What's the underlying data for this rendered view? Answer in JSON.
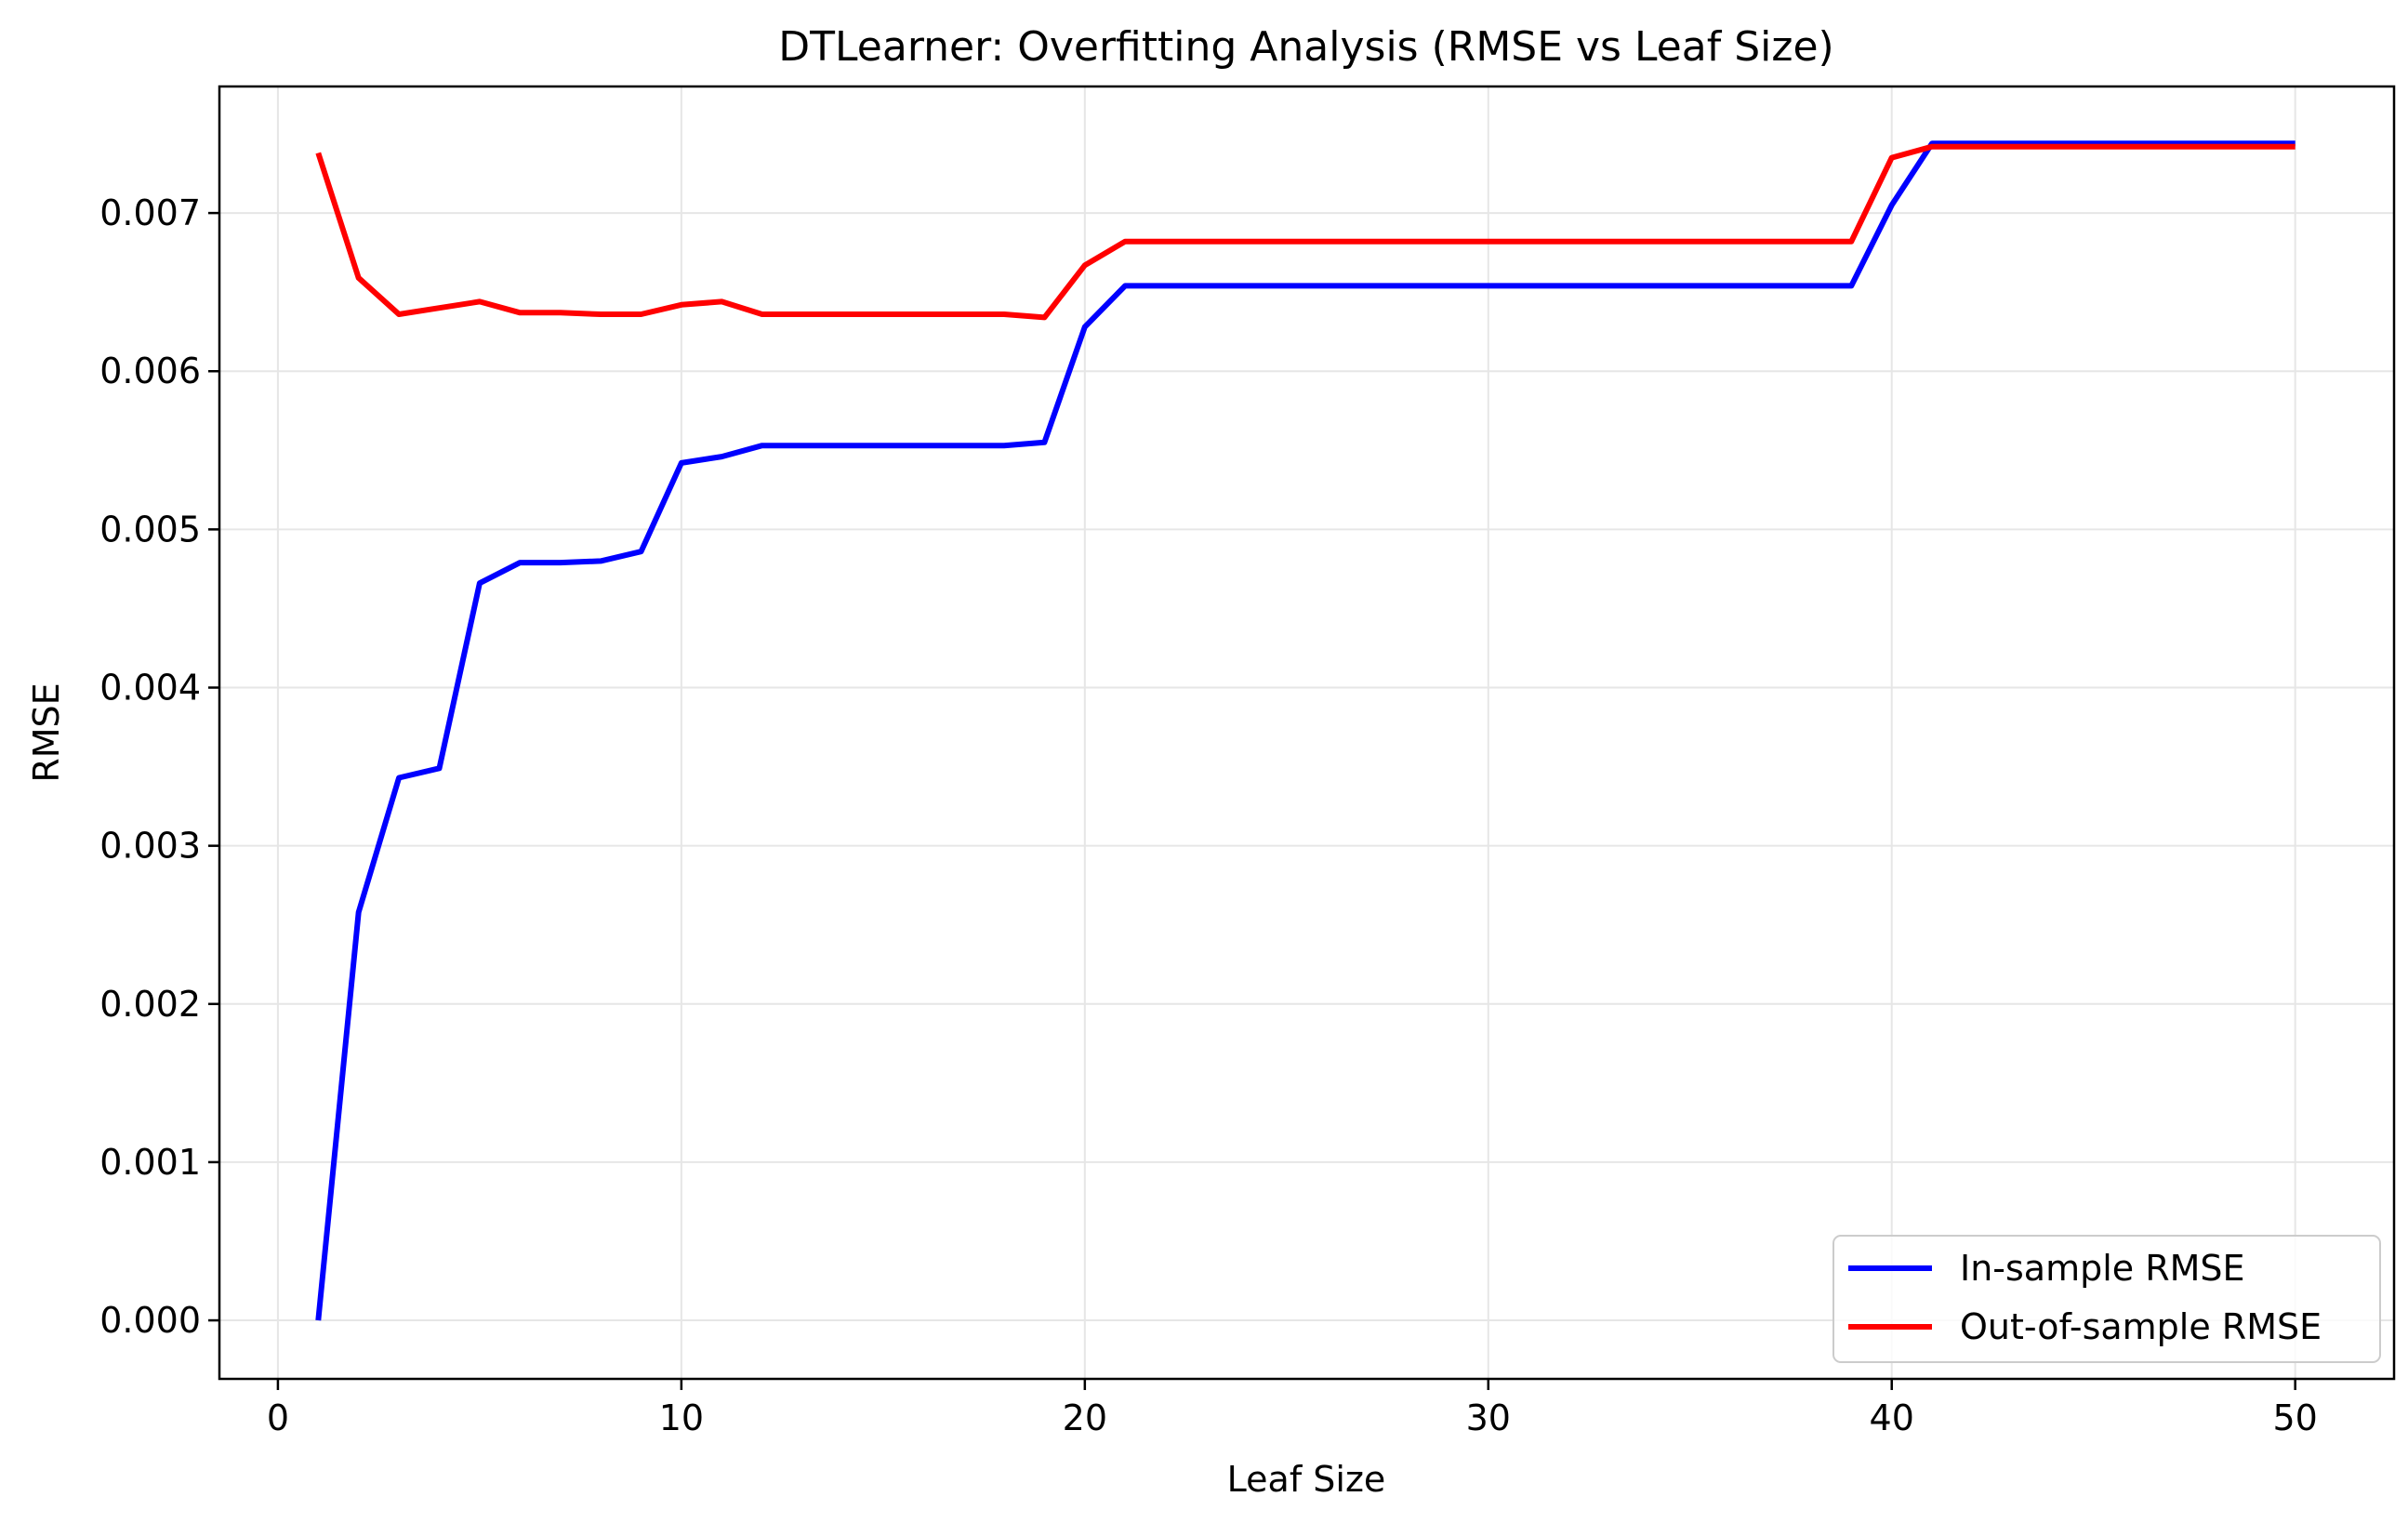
{
  "chart_data": {
    "type": "line",
    "title": "DTLearner: Overfitting Analysis (RMSE vs Leaf Size)",
    "xlabel": "Leaf Size",
    "ylabel": "RMSE",
    "xlim": [
      -1.45,
      52.45
    ],
    "ylim": [
      -0.00037,
      0.0078
    ],
    "xticks": [
      0,
      10,
      20,
      30,
      40,
      50
    ],
    "xtick_labels": [
      "0",
      "10",
      "20",
      "30",
      "40",
      "50"
    ],
    "yticks": [
      0.0,
      0.001,
      0.002,
      0.003,
      0.004,
      0.005,
      0.006,
      0.007
    ],
    "ytick_labels": [
      "0.000",
      "0.001",
      "0.002",
      "0.003",
      "0.004",
      "0.005",
      "0.006",
      "0.007"
    ],
    "grid": true,
    "legend_position": "lower-right",
    "x": [
      1,
      2,
      3,
      4,
      5,
      6,
      7,
      8,
      9,
      10,
      11,
      12,
      13,
      14,
      15,
      16,
      17,
      18,
      19,
      20,
      21,
      22,
      23,
      24,
      25,
      26,
      27,
      28,
      29,
      30,
      31,
      32,
      33,
      34,
      35,
      36,
      37,
      38,
      39,
      40,
      41,
      42,
      43,
      44,
      45,
      46,
      47,
      48,
      49,
      50
    ],
    "series": [
      {
        "name": "In-sample RMSE",
        "color": "#0000ff",
        "values": [
          0.0,
          0.00258,
          0.00343,
          0.00349,
          0.00466,
          0.00479,
          0.00479,
          0.0048,
          0.00486,
          0.00542,
          0.00546,
          0.00553,
          0.00553,
          0.00553,
          0.00553,
          0.00553,
          0.00553,
          0.00553,
          0.00555,
          0.00628,
          0.00654,
          0.00654,
          0.00654,
          0.00654,
          0.00654,
          0.00654,
          0.00654,
          0.00654,
          0.00654,
          0.00654,
          0.00654,
          0.00654,
          0.00654,
          0.00654,
          0.00654,
          0.00654,
          0.00654,
          0.00654,
          0.00654,
          0.00705,
          0.00744,
          0.00744,
          0.00744,
          0.00744,
          0.00744,
          0.00744,
          0.00744,
          0.00744,
          0.00744,
          0.00744
        ]
      },
      {
        "name": "Out-of-sample RMSE",
        "color": "#ff0000",
        "values": [
          0.00738,
          0.00659,
          0.00636,
          0.0064,
          0.00644,
          0.00637,
          0.00637,
          0.00636,
          0.00636,
          0.00642,
          0.00644,
          0.00636,
          0.00636,
          0.00636,
          0.00636,
          0.00636,
          0.00636,
          0.00636,
          0.00634,
          0.00667,
          0.00682,
          0.00682,
          0.00682,
          0.00682,
          0.00682,
          0.00682,
          0.00682,
          0.00682,
          0.00682,
          0.00682,
          0.00682,
          0.00682,
          0.00682,
          0.00682,
          0.00682,
          0.00682,
          0.00682,
          0.00682,
          0.00682,
          0.00735,
          0.00742,
          0.00742,
          0.00742,
          0.00742,
          0.00742,
          0.00742,
          0.00742,
          0.00742,
          0.00742,
          0.00742
        ]
      }
    ]
  }
}
